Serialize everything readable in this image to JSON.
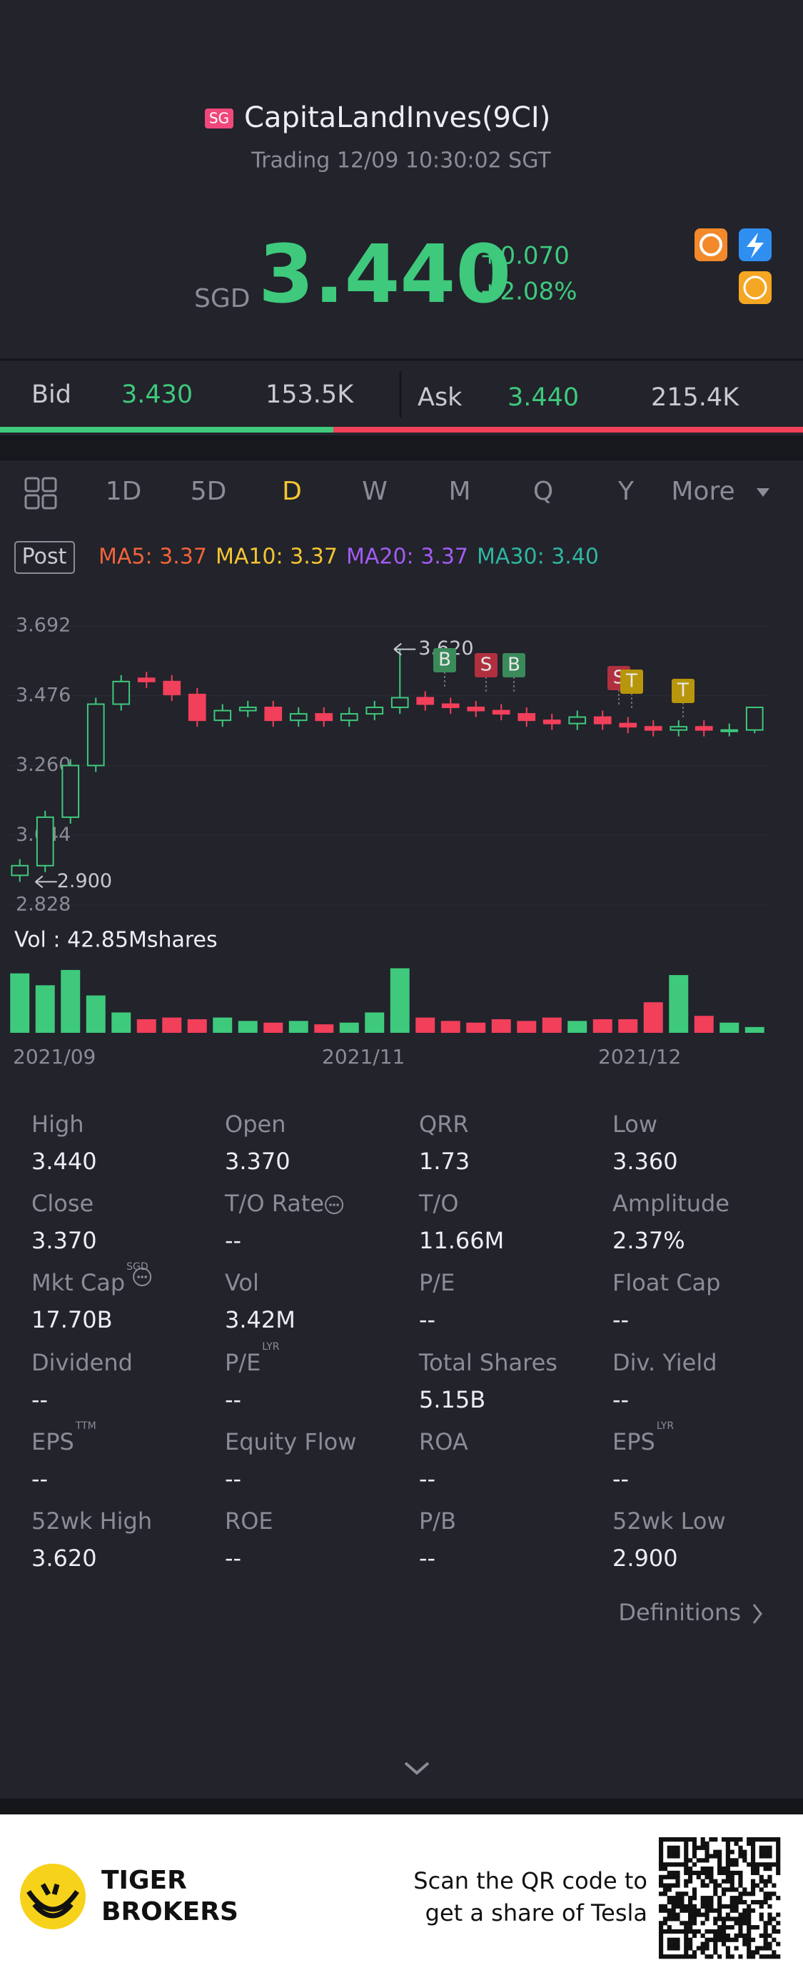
{
  "header": {
    "market_badge": "SG",
    "name": "CapitaLandInves(9CI)",
    "status": "Trading 12/09 10:30:02 SGT",
    "currency": "SGD",
    "price": "3.440",
    "change": "+0.070",
    "change_pct": "+2.08%"
  },
  "quote": {
    "bid_label": "Bid",
    "bid": "3.430",
    "bid_size": "153.5K",
    "ask_label": "Ask",
    "ask": "3.440",
    "ask_size": "215.4K"
  },
  "tabs": {
    "items": [
      "1D",
      "5D",
      "D",
      "W",
      "M",
      "Q",
      "Y",
      "More"
    ],
    "active": 2
  },
  "indicators": {
    "session": "Post",
    "ma": [
      {
        "label": "MA5: 3.37",
        "color": "#f0643a"
      },
      {
        "label": "MA10: 3.37",
        "color": "#f5c531"
      },
      {
        "label": "MA20: 3.37",
        "color": "#a35cf2"
      },
      {
        "label": "MA30: 3.40",
        "color": "#2fb5a0"
      }
    ]
  },
  "chart": {
    "ylim": [
      2.828,
      3.692
    ],
    "yticks": [
      3.692,
      3.476,
      {
        "value": 3.26,
        "label": "3.260"
      },
      3.044,
      2.828
    ],
    "open": [
      2.92,
      2.95,
      3.1,
      3.26,
      3.45,
      3.53,
      3.52,
      3.48,
      3.4,
      3.43,
      3.44,
      3.4,
      3.42,
      3.4,
      3.42,
      3.44,
      3.47,
      3.45,
      3.44,
      3.43,
      3.42,
      3.4,
      3.39,
      3.41,
      3.39,
      3.38,
      3.37,
      3.38,
      3.37,
      3.37
    ],
    "high": [
      2.97,
      3.12,
      3.28,
      3.47,
      3.54,
      3.55,
      3.54,
      3.5,
      3.45,
      3.46,
      3.46,
      3.44,
      3.44,
      3.44,
      3.46,
      3.62,
      3.49,
      3.47,
      3.46,
      3.45,
      3.44,
      3.42,
      3.43,
      3.43,
      3.41,
      3.4,
      3.4,
      3.4,
      3.39,
      3.44
    ],
    "low": [
      2.9,
      2.93,
      3.08,
      3.24,
      3.43,
      3.5,
      3.46,
      3.38,
      3.38,
      3.41,
      3.38,
      3.38,
      3.38,
      3.38,
      3.4,
      3.42,
      3.43,
      3.42,
      3.41,
      3.4,
      3.38,
      3.37,
      3.37,
      3.37,
      3.36,
      3.35,
      3.35,
      3.35,
      3.35,
      3.36
    ],
    "close": [
      2.95,
      3.1,
      3.26,
      3.45,
      3.52,
      3.52,
      3.48,
      3.4,
      3.43,
      3.44,
      3.4,
      3.42,
      3.4,
      3.42,
      3.44,
      3.47,
      3.45,
      3.44,
      3.43,
      3.42,
      3.4,
      3.39,
      3.41,
      3.39,
      3.38,
      3.37,
      3.38,
      3.37,
      3.37,
      3.44
    ],
    "high_label": "3.620",
    "low_label": "2.900",
    "trade_markers": [
      "B",
      "S",
      "B",
      "S",
      "T",
      "T"
    ],
    "volume_title": "Vol : 42.85Mshares",
    "volume_lim": [
      0,
      42.85
    ],
    "volume": [
      35,
      28,
      37,
      22,
      12,
      8,
      9,
      8,
      9,
      7,
      6,
      7,
      5,
      6,
      12,
      38,
      9,
      7,
      6,
      8,
      7,
      9,
      7,
      8,
      8,
      18,
      34,
      10,
      6,
      3.42
    ],
    "dates": [
      "2021/09",
      "2021/11",
      "2021/12"
    ]
  },
  "stats": {
    "rows": [
      [
        {
          "label": "High",
          "value": "3.440"
        },
        {
          "label": "Open",
          "value": "3.370"
        },
        {
          "label": "QRR",
          "value": "1.73"
        },
        {
          "label": "Low",
          "value": "3.360"
        }
      ],
      [
        {
          "label": "Close",
          "value": "3.370"
        },
        {
          "label": "T/O Rate",
          "value": "--",
          "info": true
        },
        {
          "label": "T/O",
          "value": "11.66M"
        },
        {
          "label": "Amplitude",
          "value": "2.37%"
        }
      ],
      [
        {
          "label": "Mkt Cap",
          "sup": "SGD",
          "value": "17.70B",
          "info": true
        },
        {
          "label": "Vol",
          "value": "3.42M"
        },
        {
          "label": "P/E",
          "value": "--"
        },
        {
          "label": "Float Cap",
          "value": "--"
        }
      ],
      [
        {
          "label": "Dividend",
          "value": "--"
        },
        {
          "label": "P/E",
          "sup": "LYR",
          "value": "--"
        },
        {
          "label": "Total Shares",
          "value": "5.15B"
        },
        {
          "label": "Div. Yield",
          "value": "--"
        }
      ],
      [
        {
          "label": "EPS",
          "sup": "TTM",
          "value": "--"
        },
        {
          "label": "Equity Flow",
          "value": "--"
        },
        {
          "label": "ROA",
          "value": "--"
        },
        {
          "label": "EPS",
          "sup": "LYR",
          "value": "--"
        }
      ],
      [
        {
          "label": "52wk High",
          "value": "3.620"
        },
        {
          "label": "ROE",
          "value": "--"
        },
        {
          "label": "P/B",
          "value": "--"
        },
        {
          "label": "52wk Low",
          "value": "2.900"
        }
      ]
    ]
  },
  "definitions": "Definitions",
  "footer": {
    "brand": [
      "TIGER",
      "BROKERS"
    ],
    "qr_text": [
      "Scan the QR code to",
      "get a share of Tesla"
    ]
  }
}
